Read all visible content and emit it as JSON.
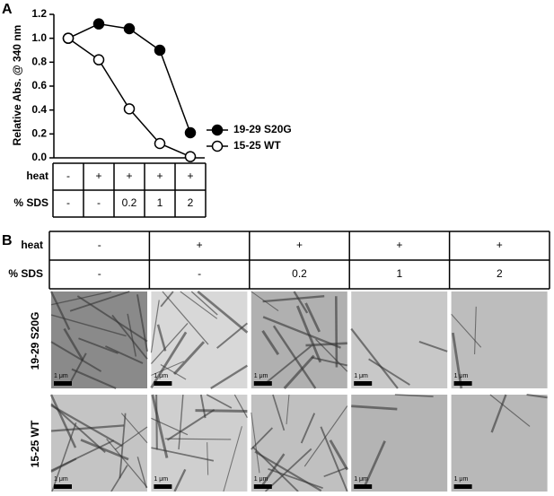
{
  "panel_a": {
    "label": "A",
    "table": {
      "row_labels": [
        "heat",
        "% SDS"
      ],
      "rows": [
        [
          "-",
          "+",
          "+",
          "+",
          "+"
        ],
        [
          "-",
          "-",
          "0.2",
          "1",
          "2"
        ]
      ]
    }
  },
  "chart_data": {
    "type": "line",
    "y_label": "Relative Abs. @ 340 nm",
    "categories": [
      null,
      null,
      null,
      null,
      null
    ],
    "series": [
      {
        "name": "19-29 S20G",
        "color": "#000000",
        "values": [
          1.0,
          1.12,
          1.08,
          0.9,
          0.21
        ]
      },
      {
        "name": "15-25 WT",
        "color": "#ffffff",
        "values": [
          1.0,
          0.82,
          0.41,
          0.12,
          0.01
        ]
      }
    ],
    "ylim": [
      0,
      1.2
    ],
    "yticks": [
      {
        "value": 0,
        "label": "0.0"
      },
      0.2,
      0.4,
      0.6,
      0.8,
      {
        "value": 1,
        "label": "1.0"
      },
      1.2
    ]
  },
  "panel_b": {
    "label": "B",
    "table": {
      "row_labels": [
        "heat",
        "% SDS"
      ],
      "rows": [
        [
          "-",
          "+",
          "+",
          "+",
          "+"
        ],
        [
          "-",
          "-",
          "0.2",
          "1",
          "2"
        ]
      ]
    },
    "image_rows": [
      "19-29 S20G",
      "15-25 WT"
    ],
    "scale_bar": "1 μm"
  }
}
